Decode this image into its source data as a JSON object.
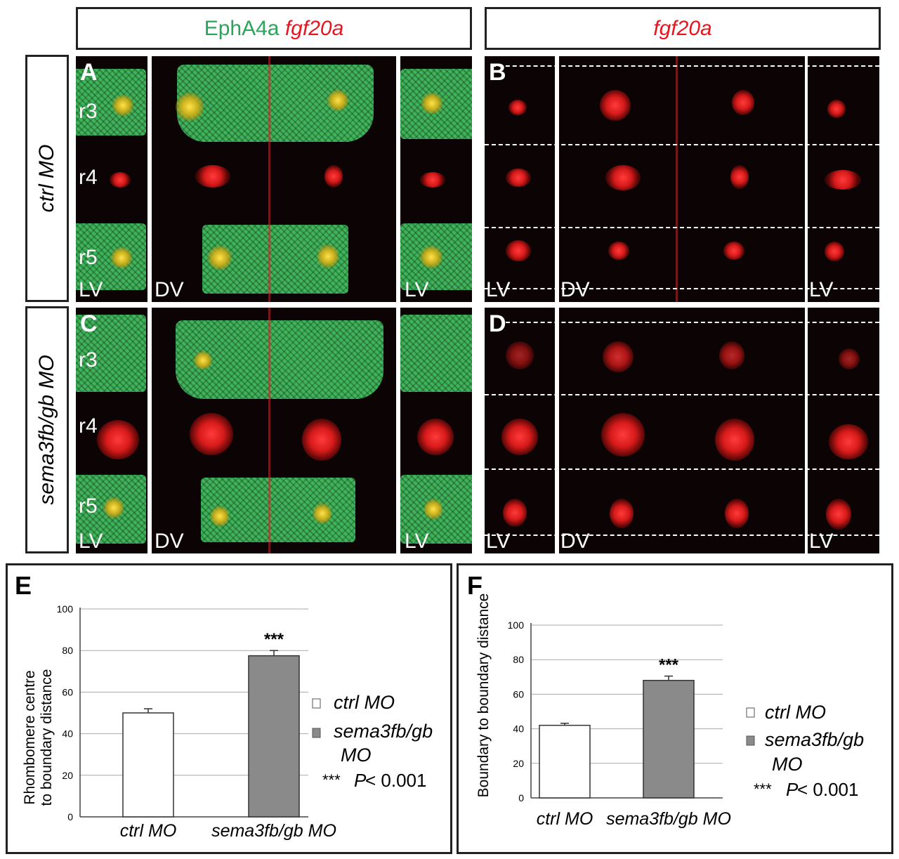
{
  "headers": {
    "left_green": "EphA4a",
    "left_red": "fgf20a",
    "right_red": "fgf20a"
  },
  "rows": [
    {
      "label": "ctrl MO"
    },
    {
      "label": "sema3fb/gb MO"
    }
  ],
  "panels": {
    "A": "A",
    "B": "B",
    "C": "C",
    "D": "D",
    "rhombomeres": [
      "r3",
      "r4",
      "r5"
    ],
    "lv": "LV",
    "dv": "DV"
  },
  "colors": {
    "green": "#2aa55a",
    "red": "#e8141e",
    "bar_ctrl": "#ffffff",
    "bar_sema": "#8a8a8a"
  },
  "chart_data": [
    {
      "panel": "E",
      "type": "bar",
      "categories": [
        "ctrl MO",
        "sema3fb/gb MO"
      ],
      "values": [
        50,
        77.5
      ],
      "errors": [
        2,
        2.5
      ],
      "significance": [
        "",
        "***"
      ],
      "ylabel_line1": "Rhombomere centre",
      "ylabel_line2": "to boundary distance",
      "ylim": [
        0,
        100
      ],
      "yticks": [
        "0",
        "20",
        "40",
        "60",
        "80",
        "100"
      ],
      "legend": [
        "ctrl MO",
        "sema3fb/gb",
        "MO"
      ],
      "pnote_stars": "***",
      "pnote_p": "P",
      "pnote_rest": " < 0.001",
      "grid": true
    },
    {
      "panel": "F",
      "type": "bar",
      "categories": [
        "ctrl MO",
        "sema3fb/gb MO"
      ],
      "values": [
        42,
        68
      ],
      "errors": [
        1.2,
        2.5
      ],
      "significance": [
        "",
        "***"
      ],
      "ylabel_line1": "Boundary to boundary distance",
      "ylim": [
        0,
        100
      ],
      "yticks": [
        "0",
        "20",
        "40",
        "60",
        "80",
        "100"
      ],
      "legend": [
        "ctrl MO",
        "sema3fb/gb",
        "MO"
      ],
      "pnote_stars": "***",
      "pnote_p": "P",
      "pnote_rest": " < 0.001",
      "grid": true
    }
  ]
}
